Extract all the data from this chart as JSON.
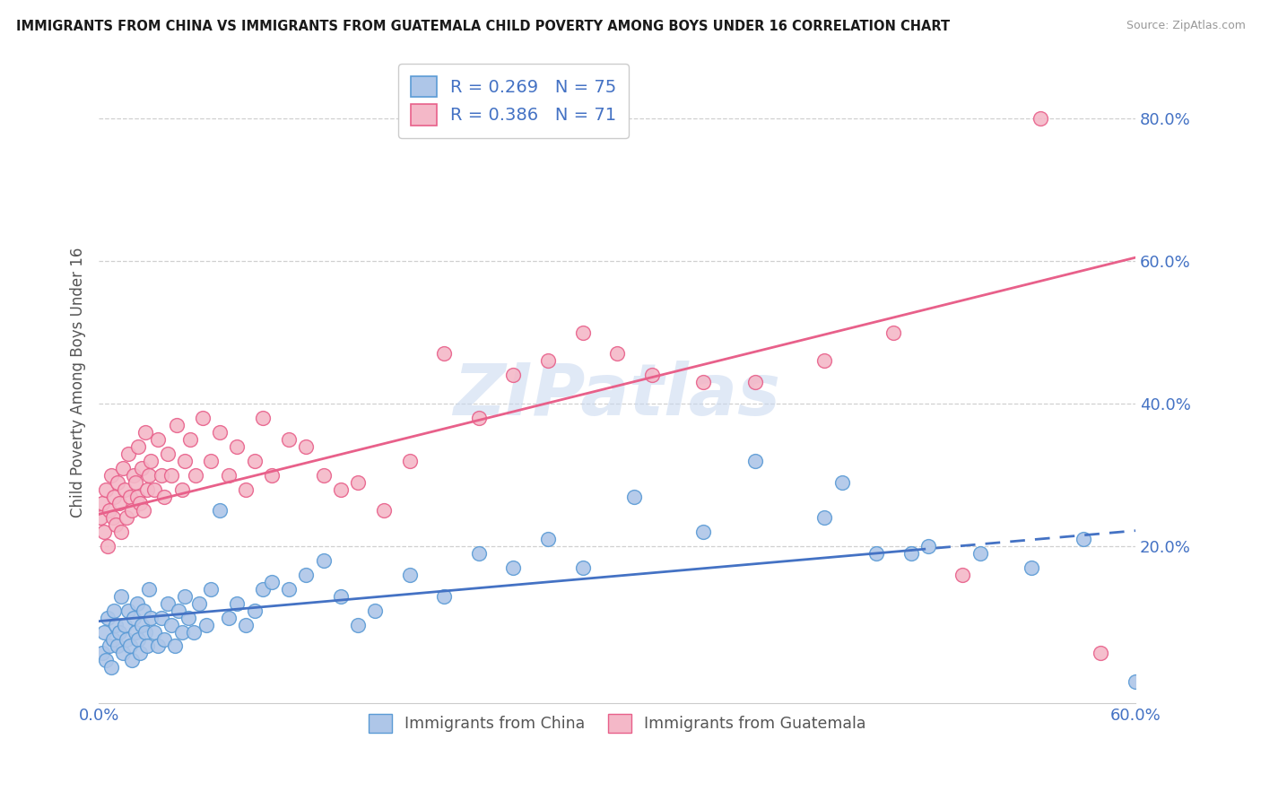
{
  "title": "IMMIGRANTS FROM CHINA VS IMMIGRANTS FROM GUATEMALA CHILD POVERTY AMONG BOYS UNDER 16 CORRELATION CHART",
  "source": "Source: ZipAtlas.com",
  "ylabel": "Child Poverty Among Boys Under 16",
  "xlim": [
    0,
    0.6
  ],
  "ylim": [
    -0.02,
    0.88
  ],
  "china_color": "#aec6e8",
  "china_edge_color": "#5b9bd5",
  "guatemala_color": "#f4b8c8",
  "guatemala_edge_color": "#e8608a",
  "china_R": 0.269,
  "china_N": 75,
  "guatemala_R": 0.386,
  "guatemala_N": 71,
  "trend_china_color": "#4472c4",
  "trend_guatemala_color": "#e8608a",
  "watermark_text": "ZIPatlas",
  "background_color": "#ffffff",
  "grid_color": "#d0d0d0",
  "title_color": "#1a1a1a",
  "axis_label_color": "#555555",
  "tick_color": "#4472c4",
  "source_color": "#999999",
  "legend_text_color": "#4472c4",
  "china_x": [
    0.002,
    0.003,
    0.004,
    0.005,
    0.006,
    0.007,
    0.008,
    0.009,
    0.01,
    0.011,
    0.012,
    0.013,
    0.014,
    0.015,
    0.016,
    0.017,
    0.018,
    0.019,
    0.02,
    0.021,
    0.022,
    0.023,
    0.024,
    0.025,
    0.026,
    0.027,
    0.028,
    0.029,
    0.03,
    0.032,
    0.034,
    0.036,
    0.038,
    0.04,
    0.042,
    0.044,
    0.046,
    0.048,
    0.05,
    0.052,
    0.055,
    0.058,
    0.062,
    0.065,
    0.07,
    0.075,
    0.08,
    0.085,
    0.09,
    0.095,
    0.1,
    0.11,
    0.12,
    0.13,
    0.14,
    0.15,
    0.16,
    0.18,
    0.2,
    0.22,
    0.24,
    0.26,
    0.28,
    0.31,
    0.35,
    0.38,
    0.42,
    0.45,
    0.48,
    0.51,
    0.54,
    0.57,
    0.6,
    0.47,
    0.43
  ],
  "china_y": [
    0.05,
    0.08,
    0.04,
    0.1,
    0.06,
    0.03,
    0.07,
    0.11,
    0.09,
    0.06,
    0.08,
    0.13,
    0.05,
    0.09,
    0.07,
    0.11,
    0.06,
    0.04,
    0.1,
    0.08,
    0.12,
    0.07,
    0.05,
    0.09,
    0.11,
    0.08,
    0.06,
    0.14,
    0.1,
    0.08,
    0.06,
    0.1,
    0.07,
    0.12,
    0.09,
    0.06,
    0.11,
    0.08,
    0.13,
    0.1,
    0.08,
    0.12,
    0.09,
    0.14,
    0.25,
    0.1,
    0.12,
    0.09,
    0.11,
    0.14,
    0.15,
    0.14,
    0.16,
    0.18,
    0.13,
    0.09,
    0.11,
    0.16,
    0.13,
    0.19,
    0.17,
    0.21,
    0.17,
    0.27,
    0.22,
    0.32,
    0.24,
    0.19,
    0.2,
    0.19,
    0.17,
    0.21,
    0.01,
    0.19,
    0.29
  ],
  "guatemala_x": [
    0.001,
    0.002,
    0.003,
    0.004,
    0.005,
    0.006,
    0.007,
    0.008,
    0.009,
    0.01,
    0.011,
    0.012,
    0.013,
    0.014,
    0.015,
    0.016,
    0.017,
    0.018,
    0.019,
    0.02,
    0.021,
    0.022,
    0.023,
    0.024,
    0.025,
    0.026,
    0.027,
    0.028,
    0.029,
    0.03,
    0.032,
    0.034,
    0.036,
    0.038,
    0.04,
    0.042,
    0.045,
    0.048,
    0.05,
    0.053,
    0.056,
    0.06,
    0.065,
    0.07,
    0.075,
    0.08,
    0.085,
    0.09,
    0.095,
    0.1,
    0.11,
    0.12,
    0.13,
    0.14,
    0.15,
    0.165,
    0.18,
    0.2,
    0.22,
    0.24,
    0.26,
    0.28,
    0.3,
    0.32,
    0.35,
    0.38,
    0.42,
    0.46,
    0.5,
    0.545,
    0.58
  ],
  "guatemala_y": [
    0.24,
    0.26,
    0.22,
    0.28,
    0.2,
    0.25,
    0.3,
    0.24,
    0.27,
    0.23,
    0.29,
    0.26,
    0.22,
    0.31,
    0.28,
    0.24,
    0.33,
    0.27,
    0.25,
    0.3,
    0.29,
    0.27,
    0.34,
    0.26,
    0.31,
    0.25,
    0.36,
    0.28,
    0.3,
    0.32,
    0.28,
    0.35,
    0.3,
    0.27,
    0.33,
    0.3,
    0.37,
    0.28,
    0.32,
    0.35,
    0.3,
    0.38,
    0.32,
    0.36,
    0.3,
    0.34,
    0.28,
    0.32,
    0.38,
    0.3,
    0.35,
    0.34,
    0.3,
    0.28,
    0.29,
    0.25,
    0.32,
    0.47,
    0.38,
    0.44,
    0.46,
    0.5,
    0.47,
    0.44,
    0.43,
    0.43,
    0.46,
    0.5,
    0.16,
    0.8,
    0.05
  ],
  "china_trend_x_solid_end": 0.47,
  "china_trend_start_y": 0.095,
  "china_trend_end_y": 0.222,
  "guatemala_trend_start_y": 0.245,
  "guatemala_trend_end_y": 0.605
}
